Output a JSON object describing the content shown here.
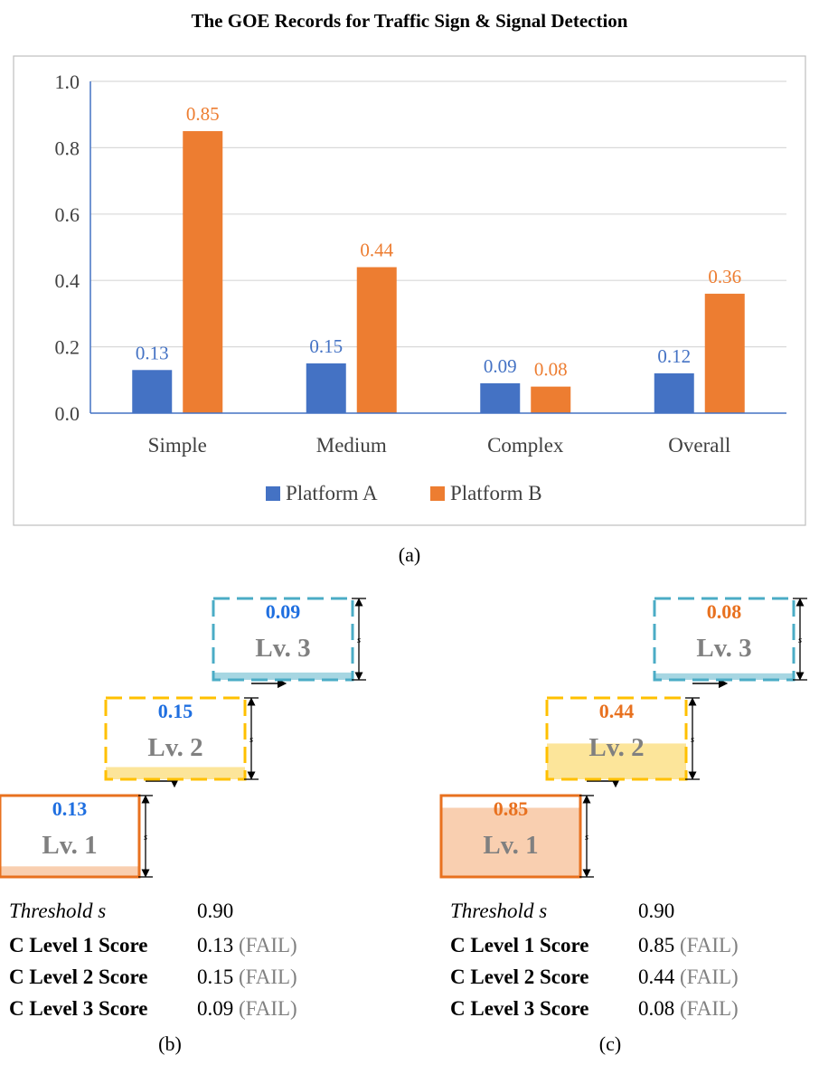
{
  "chart_data": {
    "type": "bar",
    "title": "The GOE Records for Traffic Sign & Signal Detection",
    "categories": [
      "Simple",
      "Medium",
      "Complex",
      "Overall"
    ],
    "series": [
      {
        "name": "Platform A",
        "values": [
          0.13,
          0.15,
          0.09,
          0.12
        ],
        "labels": [
          "0.13",
          "0.15",
          "0.09",
          "0.12"
        ],
        "color": "#4472C4"
      },
      {
        "name": "Platform B",
        "values": [
          0.85,
          0.44,
          0.08,
          0.36
        ],
        "labels": [
          "0.85",
          "0.44",
          "0.08",
          "0.36"
        ],
        "color": "#ED7D31"
      }
    ],
    "ylim": [
      0,
      1.0
    ],
    "yticks": [
      "0.0",
      "0.2",
      "0.4",
      "0.6",
      "0.8",
      "1.0"
    ],
    "grid": true,
    "legend": "bottom"
  },
  "caption_a": "(a)",
  "caption_b": "(b)",
  "caption_c": "(c)",
  "panel_b": {
    "color": "#1F6FE0",
    "levels": [
      {
        "label": "Lv. 1",
        "score": "0.13",
        "value": 0.13
      },
      {
        "label": "Lv. 2",
        "score": "0.15",
        "value": 0.15
      },
      {
        "label": "Lv. 3",
        "score": "0.09",
        "value": 0.09
      }
    ],
    "step_label": "s",
    "threshold_label": "Threshold s",
    "threshold_value": "0.90",
    "rows": [
      {
        "label": "C Level 1 Score",
        "value": "0.13",
        "result": "(FAIL)"
      },
      {
        "label": "C Level 2 Score",
        "value": "0.15",
        "result": "(FAIL)"
      },
      {
        "label": "C Level 3 Score",
        "value": "0.09",
        "result": "(FAIL)"
      }
    ]
  },
  "panel_c": {
    "color": "#E8711F",
    "levels": [
      {
        "label": "Lv. 1",
        "score": "0.85",
        "value": 0.85
      },
      {
        "label": "Lv. 2",
        "score": "0.44",
        "value": 0.44
      },
      {
        "label": "Lv. 3",
        "score": "0.08",
        "value": 0.08
      }
    ],
    "step_label": "s",
    "threshold_label": "Threshold s",
    "threshold_value": "0.90",
    "rows": [
      {
        "label": "C Level 1 Score",
        "value": "0.85",
        "result": "(FAIL)"
      },
      {
        "label": "C Level 2 Score",
        "value": "0.44",
        "result": "(FAIL)"
      },
      {
        "label": "C Level 3 Score",
        "value": "0.08",
        "result": "(FAIL)"
      }
    ]
  }
}
